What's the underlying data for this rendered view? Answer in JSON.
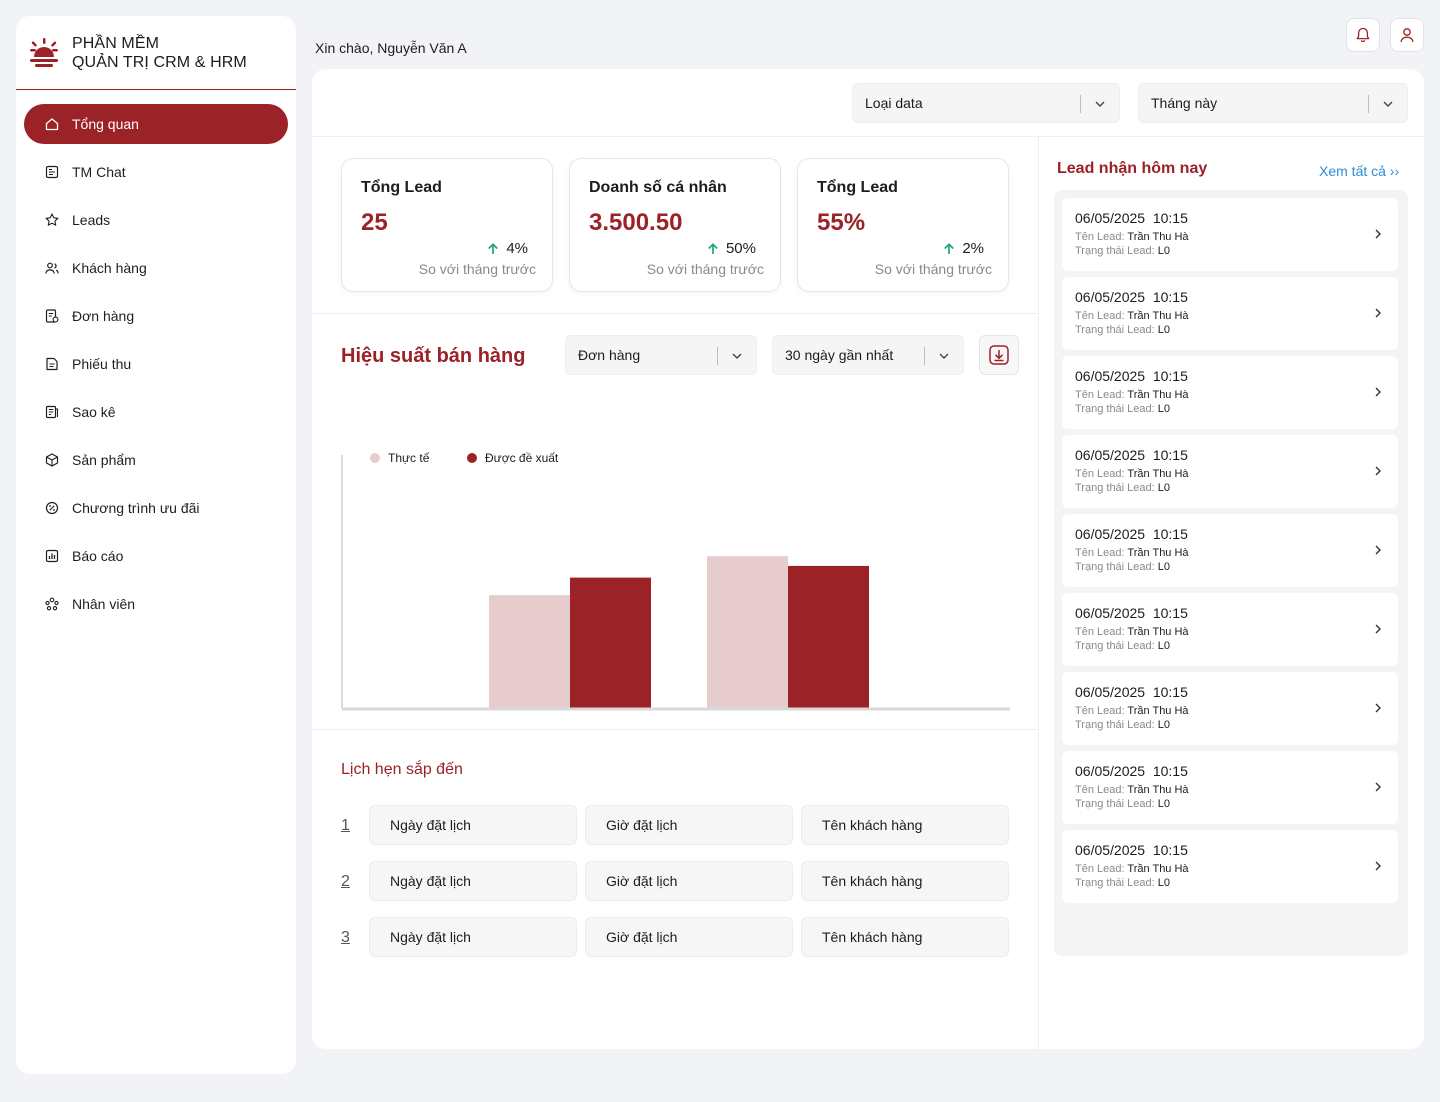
{
  "brand": {
    "line1": "PHẦN MỀM",
    "line2": "QUẢN TRỊ CRM & HRM"
  },
  "sidebar": {
    "items": [
      {
        "label": "Tổng quan",
        "icon": "home-icon",
        "active": true
      },
      {
        "label": "TM Chat",
        "icon": "chat-icon"
      },
      {
        "label": "Leads",
        "icon": "star-icon"
      },
      {
        "label": "Khách hàng",
        "icon": "users-icon"
      },
      {
        "label": "Đơn hàng",
        "icon": "order-icon"
      },
      {
        "label": "Phiếu thu",
        "icon": "receipt-icon"
      },
      {
        "label": "Sao kê",
        "icon": "statement-icon"
      },
      {
        "label": "Sản phẩm",
        "icon": "box-icon"
      },
      {
        "label": "Chương trình ưu đãi",
        "icon": "promo-icon"
      },
      {
        "label": "Báo cáo",
        "icon": "chart-icon"
      },
      {
        "label": "Nhân viên",
        "icon": "team-icon"
      }
    ]
  },
  "header": {
    "greeting": "Xin chào, Nguyễn Văn A"
  },
  "filters": {
    "data_type": "Loại data",
    "period": "Tháng này"
  },
  "stats": [
    {
      "title": "Tổng Lead",
      "value": "25",
      "change": "4%",
      "compare": "So với tháng trước"
    },
    {
      "title": "Doanh số cá nhân",
      "value": "3.500.50",
      "change": "50%",
      "compare": "So với tháng trước"
    },
    {
      "title": "Tổng Lead",
      "value": "55%",
      "change": "2%",
      "compare": "So với tháng trước"
    }
  ],
  "performance": {
    "title": "Hiệu suất bán hàng",
    "metric_select": "Đơn hàng",
    "range_select": "30 ngày gần nhất"
  },
  "chart_data": {
    "type": "bar",
    "title": "",
    "xlabel": "",
    "ylabel": "",
    "grid": false,
    "legend": "top-left",
    "categories": [
      "",
      "",
      ""
    ],
    "series": [
      {
        "name": "Thực tế",
        "color": "#e6cccd",
        "values": [
          0,
          58,
          78
        ]
      },
      {
        "name": "Được đề xuất",
        "color": "#9b2226",
        "values": [
          0,
          67,
          73
        ]
      }
    ],
    "ylim": [
      0,
      130
    ]
  },
  "appointments": {
    "title": "Lịch hẹn sắp đến",
    "rows": [
      {
        "num": "1",
        "date": "Ngày đặt lịch",
        "time": "Giờ đặt lịch",
        "customer": "Tên khách hàng"
      },
      {
        "num": "2",
        "date": "Ngày đặt lịch",
        "time": "Giờ đặt lịch",
        "customer": "Tên khách hàng"
      },
      {
        "num": "3",
        "date": "Ngày đặt lịch",
        "time": "Giờ đặt lịch",
        "customer": "Tên khách hàng"
      }
    ]
  },
  "leads_today": {
    "title": "Lead nhận hôm nay",
    "view_all": "Xem tất cả  ››",
    "name_label": "Tên Lead:",
    "status_label": "Trạng thái Lead:",
    "items": [
      {
        "datetime": "06/05/2025  10:15",
        "name": "Trần Thu Hà",
        "status": "L0"
      },
      {
        "datetime": "06/05/2025  10:15",
        "name": "Trần Thu Hà",
        "status": "L0"
      },
      {
        "datetime": "06/05/2025  10:15",
        "name": "Trần Thu Hà",
        "status": "L0"
      },
      {
        "datetime": "06/05/2025  10:15",
        "name": "Trần Thu Hà",
        "status": "L0"
      },
      {
        "datetime": "06/05/2025  10:15",
        "name": "Trần Thu Hà",
        "status": "L0"
      },
      {
        "datetime": "06/05/2025  10:15",
        "name": "Trần Thu Hà",
        "status": "L0"
      },
      {
        "datetime": "06/05/2025  10:15",
        "name": "Trần Thu Hà",
        "status": "L0"
      },
      {
        "datetime": "06/05/2025  10:15",
        "name": "Trần Thu Hà",
        "status": "L0"
      },
      {
        "datetime": "06/05/2025  10:15",
        "name": "Trần Thu Hà",
        "status": "L0"
      }
    ]
  },
  "colors": {
    "brand": "#9b2226",
    "up": "#1aa86b",
    "link": "#2b8fd6"
  }
}
